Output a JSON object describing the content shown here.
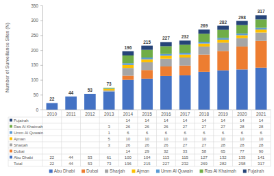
{
  "chart_data": {
    "type": "bar",
    "stacked": true,
    "grid": false,
    "legend": "bottom",
    "y_label": "Number of Surveillance Sites (N)",
    "categories": [
      "2010",
      "2011",
      "2012",
      "2013",
      "2014",
      "2015",
      "2016",
      "2017",
      "2018",
      "2019",
      "2020",
      "2021"
    ],
    "ylim": [
      0,
      350
    ],
    "yticks": [
      0,
      50,
      100,
      150,
      200,
      250,
      300,
      350
    ],
    "series": [
      {
        "name": "Abu Dhabi",
        "color": "#4472c4",
        "values": [
          22,
          44,
          53,
          61,
          100,
          104,
          113,
          115,
          127,
          132,
          135,
          141
        ]
      },
      {
        "name": "Dubai",
        "color": "#ed7d31",
        "values": [
          null,
          null,
          null,
          null,
          14,
          29,
          32,
          33,
          58,
          65,
          77,
          90
        ]
      },
      {
        "name": "Sharjah",
        "color": "#a5a5a5",
        "values": [
          null,
          null,
          null,
          3,
          26,
          26,
          26,
          27,
          27,
          28,
          28,
          28
        ]
      },
      {
        "name": "Ajman",
        "color": "#ffc000",
        "values": [
          null,
          null,
          null,
          5,
          10,
          10,
          10,
          10,
          10,
          10,
          10,
          10
        ]
      },
      {
        "name": "Umm Al Quwain",
        "color": "#5b9bd5",
        "values": [
          null,
          null,
          null,
          1,
          6,
          6,
          6,
          6,
          6,
          6,
          6,
          6
        ]
      },
      {
        "name": "Ras Al Khaimah",
        "color": "#70ad47",
        "values": [
          null,
          null,
          null,
          3,
          26,
          26,
          26,
          27,
          27,
          27,
          28,
          28
        ]
      },
      {
        "name": "Fujairah",
        "color": "#264478",
        "values": [
          null,
          null,
          null,
          null,
          14,
          14,
          14,
          14,
          14,
          14,
          14,
          14
        ]
      }
    ],
    "totals_label": "Total",
    "totals": [
      22,
      44,
      53,
      73,
      196,
      215,
      227,
      232,
      269,
      282,
      298,
      317
    ]
  }
}
